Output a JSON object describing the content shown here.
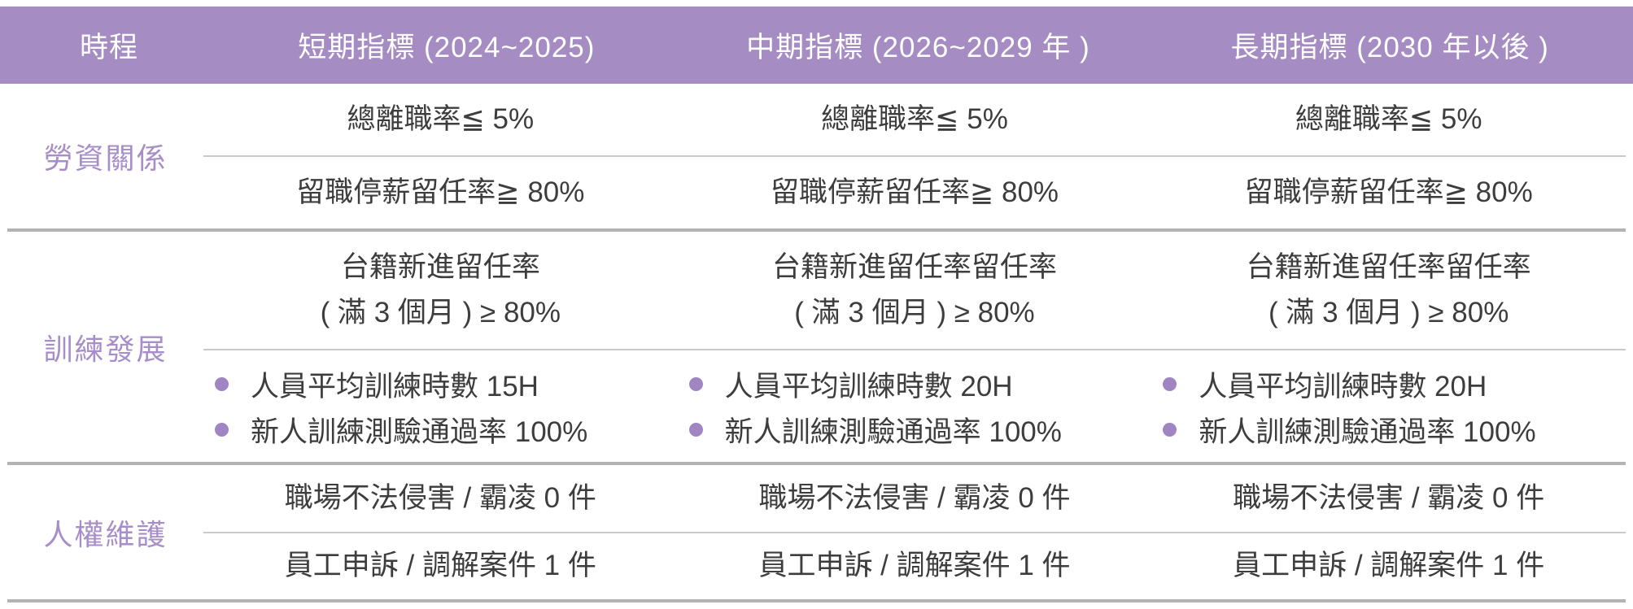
{
  "colors": {
    "header_bg": "#a58cc2",
    "label_text": "#a78ec9",
    "bullet": "#a184c2",
    "body_text": "#3d3d3d",
    "row_line": "#c9c9c9",
    "group_line": "#b3b3b3"
  },
  "header": {
    "timeline": "時程",
    "short_term": "短期指標 (2024~2025)",
    "mid_term": "中期指標 (2026~2029 年 )",
    "long_term": "長期指標 (2030 年以後 )"
  },
  "groups": [
    {
      "label": "勞資關係",
      "rows": [
        {
          "cells": [
            "總離職率≦ 5%",
            "總離職率≦ 5%",
            "總離職率≦ 5%"
          ]
        },
        {
          "cells": [
            "留職停薪留任率≧ 80%",
            "留職停薪留任率≧ 80%",
            "留職停薪留任率≧ 80%"
          ]
        }
      ]
    },
    {
      "label": "訓練發展",
      "rows": [
        {
          "cells_two_line": [
            {
              "line1": "台籍新進留任率",
              "line2": "( 滿 3 個月 ) ≥ 80%"
            },
            {
              "line1": "台籍新進留任率留任率",
              "line2": "( 滿 3 個月 ) ≥ 80%"
            },
            {
              "line1": "台籍新進留任率留任率",
              "line2": "( 滿 3 個月 ) ≥ 80%"
            }
          ]
        },
        {
          "cells_bullets": [
            {
              "items": [
                "人員平均訓練時數 15H",
                "新人訓練測驗通過率 100%"
              ]
            },
            {
              "items": [
                "人員平均訓練時數 20H",
                "新人訓練測驗通過率 100%"
              ]
            },
            {
              "items": [
                "人員平均訓練時數 20H",
                "新人訓練測驗通過率 100%"
              ]
            }
          ]
        }
      ]
    },
    {
      "label": "人權維護",
      "rows": [
        {
          "cells": [
            "職場不法侵害 / 霸凌 0 件",
            "職場不法侵害 / 霸凌 0 件",
            "職場不法侵害 / 霸凌 0 件"
          ]
        },
        {
          "cells": [
            "員工申訴 / 調解案件 1 件",
            "員工申訴 / 調解案件 1 件",
            "員工申訴 / 調解案件 1 件"
          ]
        }
      ]
    }
  ]
}
